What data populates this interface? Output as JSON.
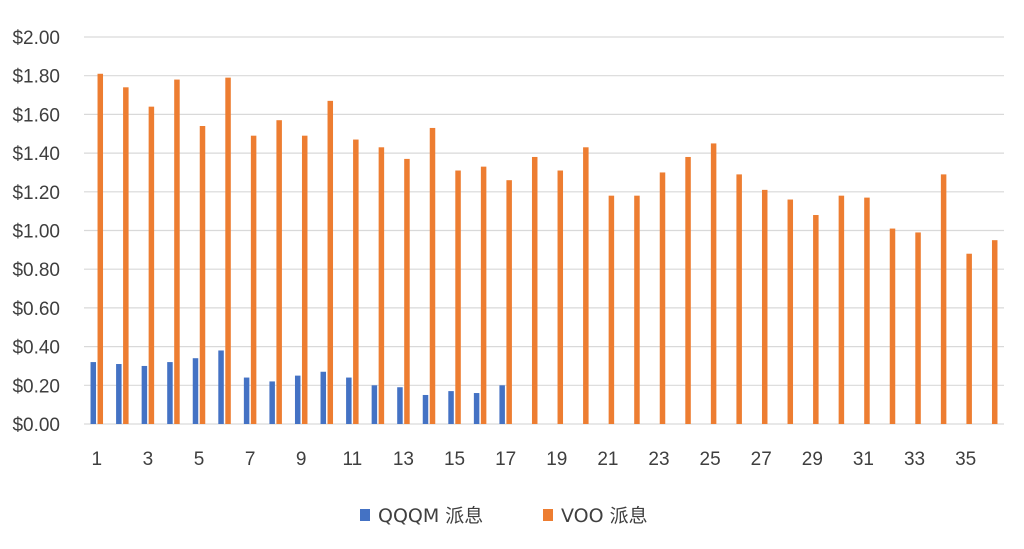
{
  "chart_data": {
    "type": "bar",
    "title": "",
    "xlabel": "",
    "ylabel": "",
    "ylim": [
      0,
      2.0
    ],
    "yticks": [
      "$0.00",
      "$0.20",
      "$0.40",
      "$0.60",
      "$0.80",
      "$1.00",
      "$1.20",
      "$1.40",
      "$1.60",
      "$1.80",
      "$2.00"
    ],
    "categories": [
      1,
      2,
      3,
      4,
      5,
      6,
      7,
      8,
      9,
      10,
      11,
      12,
      13,
      14,
      15,
      16,
      17,
      18,
      19,
      20,
      21,
      22,
      23,
      24,
      25,
      26,
      27,
      28,
      29,
      30,
      31,
      32,
      33,
      34,
      35,
      36
    ],
    "x_tick_labels": [
      "1",
      "3",
      "5",
      "7",
      "9",
      "11",
      "13",
      "15",
      "17",
      "19",
      "21",
      "23",
      "25",
      "27",
      "29",
      "31",
      "33",
      "35"
    ],
    "grid": "horizontal",
    "legend_position": "bottom",
    "series": [
      {
        "name": "QQQM 派息",
        "color": "#4472C4",
        "values": [
          0.32,
          0.31,
          0.3,
          0.32,
          0.34,
          0.38,
          0.24,
          0.22,
          0.25,
          0.27,
          0.24,
          0.2,
          0.19,
          0.15,
          0.17,
          0.16,
          0.2,
          null,
          null,
          null,
          null,
          null,
          null,
          null,
          null,
          null,
          null,
          null,
          null,
          null,
          null,
          null,
          null,
          null,
          null,
          null
        ]
      },
      {
        "name": "VOO 派息",
        "color": "#ED7D31",
        "values": [
          1.81,
          1.74,
          1.64,
          1.78,
          1.54,
          1.79,
          1.49,
          1.57,
          1.49,
          1.67,
          1.47,
          1.43,
          1.37,
          1.53,
          1.31,
          1.33,
          1.26,
          1.38,
          1.31,
          1.43,
          1.18,
          1.18,
          1.3,
          1.38,
          1.45,
          1.29,
          1.21,
          1.16,
          1.08,
          1.18,
          1.17,
          1.01,
          0.99,
          1.29,
          0.88,
          0.95
        ]
      }
    ]
  }
}
